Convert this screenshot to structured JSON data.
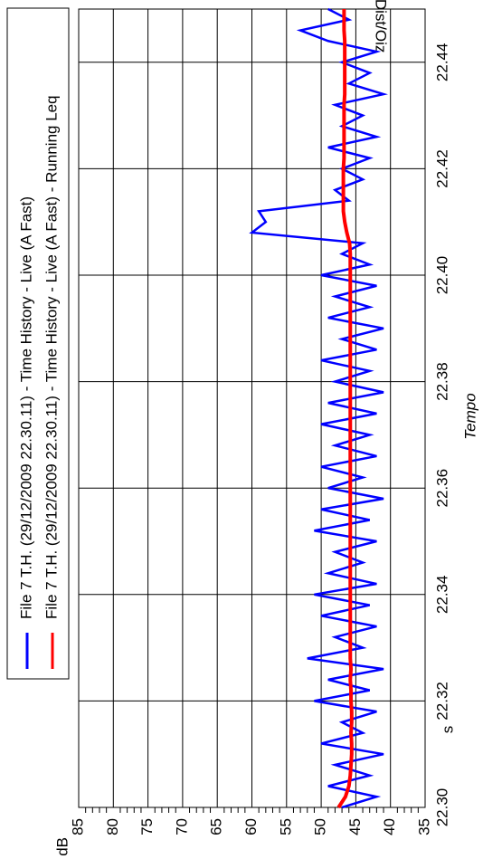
{
  "chart_data": {
    "type": "line",
    "legend_entries": [
      "File 7 T.H. (29/12/2009 22.30.11) - Time History - Live (A Fast)",
      "File 7 T.H. (29/12/2009 22.30.11) - Time History - Live (A Fast) - Running Leq"
    ],
    "x_label": "Tempo",
    "x_unit": "s",
    "y_unit": "dB",
    "corner_label": "Cum&Dist/Oiz",
    "x": [
      22.3,
      22.302,
      22.304,
      22.306,
      22.308,
      22.31,
      22.312,
      22.314,
      22.316,
      22.318,
      22.32,
      22.322,
      22.324,
      22.326,
      22.328,
      22.33,
      22.332,
      22.334,
      22.336,
      22.338,
      22.34,
      22.342,
      22.344,
      22.346,
      22.348,
      22.35,
      22.352,
      22.354,
      22.356,
      22.358,
      22.36,
      22.362,
      22.364,
      22.366,
      22.368,
      22.37,
      22.372,
      22.374,
      22.376,
      22.378,
      22.38,
      22.382,
      22.384,
      22.386,
      22.388,
      22.39,
      22.392,
      22.394,
      22.396,
      22.398,
      22.4,
      22.402,
      22.404,
      22.406,
      22.408,
      22.41,
      22.412,
      22.414,
      22.416,
      22.418,
      22.42,
      22.422,
      22.424,
      22.426,
      22.428,
      22.43,
      22.432,
      22.434,
      22.436,
      22.438,
      22.44,
      22.442,
      22.444,
      22.446,
      22.448,
      22.45
    ],
    "series": [
      {
        "name": "File 7 T.H. (29/12/2009 22.30.11) - Time History - Live (A Fast)",
        "color": "#0000ff",
        "values": [
          47,
          42,
          49,
          43,
          48,
          41,
          50,
          44,
          47,
          42,
          51,
          43,
          49,
          41,
          52,
          44,
          48,
          42,
          50,
          43,
          51,
          42,
          49,
          44,
          48,
          42,
          51,
          43,
          50,
          41,
          49,
          44,
          50,
          42,
          48,
          43,
          50,
          42,
          49,
          41,
          48,
          43,
          50,
          42,
          47,
          41,
          49,
          43,
          48,
          42,
          50,
          43,
          47,
          44,
          60,
          58,
          59,
          46,
          48,
          44,
          47,
          43,
          49,
          42,
          47,
          44,
          48,
          41,
          46,
          43,
          47,
          42,
          49,
          53,
          46,
          49
        ]
      },
      {
        "name": "File 7 T.H. (29/12/2009 22.30.11) - Time History - Live (A Fast) - Running Leq",
        "color": "#ff0000",
        "values": [
          47.5,
          46.5,
          46.0,
          45.8,
          45.7,
          45.6,
          45.6,
          45.7,
          45.6,
          45.6,
          45.7,
          45.7,
          45.8,
          45.7,
          45.8,
          45.8,
          45.8,
          45.8,
          45.8,
          45.8,
          45.8,
          45.8,
          45.8,
          45.8,
          45.8,
          45.8,
          45.8,
          45.8,
          45.8,
          45.8,
          45.8,
          45.8,
          45.8,
          45.8,
          45.8,
          45.8,
          45.8,
          45.8,
          45.8,
          45.8,
          45.8,
          45.8,
          45.8,
          45.8,
          45.8,
          45.8,
          45.8,
          45.8,
          45.8,
          45.8,
          45.8,
          45.8,
          45.8,
          45.9,
          46.3,
          46.6,
          46.8,
          46.8,
          46.8,
          46.8,
          46.8,
          46.7,
          46.7,
          46.7,
          46.7,
          46.7,
          46.7,
          46.6,
          46.6,
          46.6,
          46.6,
          46.6,
          46.6,
          46.7,
          46.7,
          46.7
        ]
      }
    ],
    "xlim": [
      22.3,
      22.45
    ],
    "ylim": [
      35,
      85
    ],
    "xticks": [
      {
        "value": 22.3,
        "label": "22.30"
      },
      22.32,
      22.34,
      22.36,
      22.38,
      {
        "value": 22.4,
        "label": "22.40"
      },
      22.42,
      22.44
    ],
    "yticks": [
      35,
      40,
      45,
      50,
      55,
      60,
      65,
      70,
      75,
      80,
      85
    ],
    "grid": true
  }
}
